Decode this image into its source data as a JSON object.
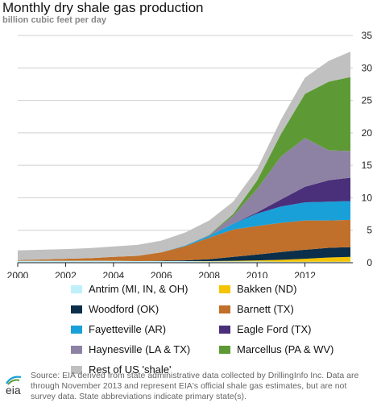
{
  "header": {
    "title": "Monthly dry shale gas production",
    "subtitle": "billion cubic feet per day"
  },
  "chart_data": {
    "type": "area",
    "title": "Monthly dry shale gas production",
    "subtitle": "billion cubic feet per day",
    "xlabel": "",
    "ylabel": "",
    "x": [
      2000,
      2001,
      2002,
      2003,
      2004,
      2005,
      2006,
      2007,
      2008,
      2009,
      2010,
      2011,
      2012,
      2013,
      2013.9
    ],
    "x_ticks": [
      "2000",
      "2002",
      "2004",
      "2006",
      "2008",
      "2010",
      "2012"
    ],
    "x_tick_values": [
      2000,
      2002,
      2004,
      2006,
      2008,
      2010,
      2012
    ],
    "xlim": [
      2000,
      2014
    ],
    "y_ticks": [
      "0",
      "5",
      "10",
      "15",
      "20",
      "25",
      "30",
      "35"
    ],
    "ylim": [
      0,
      35
    ],
    "grid": true,
    "stacked": true,
    "series": [
      {
        "name": "Antrim (MI, IN, & OH)",
        "color": "#bfeffb",
        "values": [
          0.3,
          0.3,
          0.3,
          0.3,
          0.3,
          0.25,
          0.25,
          0.25,
          0.2,
          0.2,
          0.2,
          0.15,
          0.15,
          0.15,
          0.15
        ]
      },
      {
        "name": "Bakken (ND)",
        "color": "#f5c400",
        "values": [
          0,
          0,
          0,
          0,
          0,
          0,
          0,
          0,
          0.05,
          0.1,
          0.15,
          0.3,
          0.45,
          0.65,
          0.75
        ]
      },
      {
        "name": "Woodford (OK)",
        "color": "#0b2e4a",
        "values": [
          0,
          0,
          0,
          0,
          0,
          0,
          0.05,
          0.1,
          0.3,
          0.6,
          0.9,
          1.2,
          1.4,
          1.5,
          1.5
        ]
      },
      {
        "name": "Barnett (TX)",
        "color": "#c0702a",
        "values": [
          0.1,
          0.2,
          0.3,
          0.4,
          0.6,
          0.8,
          1.3,
          2.2,
          3.3,
          4.2,
          4.4,
          4.5,
          4.5,
          4.2,
          4.2
        ]
      },
      {
        "name": "Fayetteville (AR)",
        "color": "#1aa0d8",
        "values": [
          0,
          0,
          0,
          0,
          0,
          0,
          0,
          0.1,
          0.3,
          0.9,
          1.9,
          2.5,
          2.8,
          2.9,
          2.9
        ]
      },
      {
        "name": "Eagle Ford (TX)",
        "color": "#4a2f7a",
        "values": [
          0,
          0,
          0,
          0,
          0,
          0,
          0,
          0,
          0,
          0,
          0.2,
          1.1,
          2.4,
          3.3,
          3.6
        ]
      },
      {
        "name": "Haynesville (LA & TX)",
        "color": "#8d82a3",
        "values": [
          0,
          0,
          0,
          0,
          0,
          0,
          0,
          0,
          0.1,
          1.2,
          3.6,
          6.6,
          7.5,
          4.6,
          4.1
        ]
      },
      {
        "name": "Marcellus (PA & WV)",
        "color": "#5d9a35",
        "values": [
          0,
          0,
          0,
          0,
          0,
          0,
          0,
          0,
          0.05,
          0.3,
          1.3,
          3.5,
          6.8,
          10.6,
          11.4
        ]
      },
      {
        "name": "Rest of US 'shale'",
        "color": "#c0c0c0",
        "values": [
          1.5,
          1.5,
          1.5,
          1.55,
          1.6,
          1.7,
          1.8,
          2.0,
          2.2,
          1.9,
          1.8,
          2.2,
          2.5,
          3.2,
          3.9
        ]
      }
    ]
  },
  "legend": {
    "items": [
      {
        "label": "Antrim (MI, IN, & OH)",
        "color": "#bfeffb"
      },
      {
        "label": "Bakken (ND)",
        "color": "#f5c400"
      },
      {
        "label": "Woodford (OK)",
        "color": "#0b2e4a"
      },
      {
        "label": "Barnett (TX)",
        "color": "#c0702a"
      },
      {
        "label": "Fayetteville (AR)",
        "color": "#1aa0d8"
      },
      {
        "label": "Eagle Ford (TX)",
        "color": "#4a2f7a"
      },
      {
        "label": "Haynesville (LA & TX)",
        "color": "#8d82a3"
      },
      {
        "label": "Marcellus (PA & WV)",
        "color": "#5d9a35"
      },
      {
        "label": "Rest of US 'shale'",
        "color": "#c0c0c0"
      }
    ]
  },
  "footer": {
    "logo_text": "eia",
    "source": "Source: EIA derived from state administrative data collected by DrillingInfo Inc. Data are through November 2013 and represent EIA's official shale gas estimates, but are not survey data. State abbreviations indicate primary state(s)."
  }
}
